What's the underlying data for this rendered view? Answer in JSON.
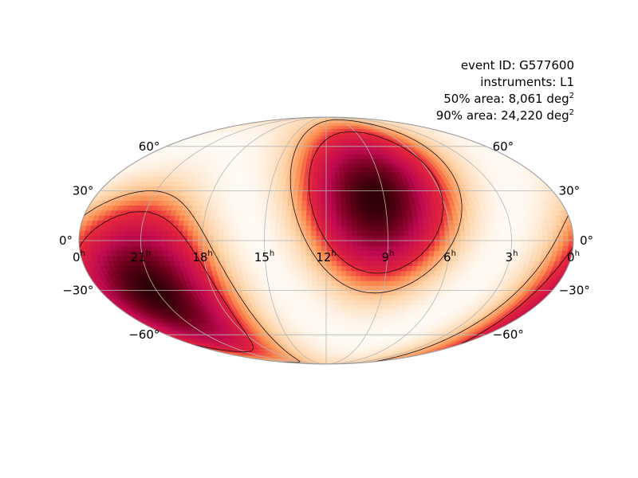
{
  "figure": {
    "event_id_label": "event ID: G577600",
    "instruments_label": "instruments: L1",
    "area50_text": "50% area: 8,061 deg",
    "area90_text": "90% area: 24,220 deg",
    "area_unit_sup": "2"
  },
  "chart_data": {
    "type": "heatmap",
    "projection": "mollweide",
    "coordinate_system": "equatorial",
    "ra_direction": "increases to the left",
    "colormap": "cylon (white-orange-red-black)",
    "grid": true,
    "ra_tick_labels": [
      {
        "ra_hours": 24,
        "main": "0",
        "sup": "h"
      },
      {
        "ra_hours": 21,
        "main": "21",
        "sup": "h"
      },
      {
        "ra_hours": 18,
        "main": "18",
        "sup": "h"
      },
      {
        "ra_hours": 15,
        "main": "15",
        "sup": "h"
      },
      {
        "ra_hours": 12,
        "main": "12",
        "sup": "h"
      },
      {
        "ra_hours": 9,
        "main": "9",
        "sup": "h"
      },
      {
        "ra_hours": 6,
        "main": "6",
        "sup": "h"
      },
      {
        "ra_hours": 3,
        "main": "3",
        "sup": "h"
      },
      {
        "ra_hours": 0,
        "main": "0",
        "sup": "h"
      }
    ],
    "dec_tick_labels": [
      {
        "dec_deg": 60,
        "text": "60°"
      },
      {
        "dec_deg": 30,
        "text": "30°"
      },
      {
        "dec_deg": 0,
        "text": "0°"
      },
      {
        "dec_deg": -30,
        "text": "−30°"
      },
      {
        "dec_deg": -60,
        "text": "−60°"
      }
    ],
    "probability_peaks": [
      {
        "ra_hours": 9.5,
        "dec_deg": 25,
        "relative_density": 1.0
      },
      {
        "ra_hours": 21.2,
        "dec_deg": -30,
        "relative_density": 1.0
      }
    ],
    "contour_levels": [
      "50%",
      "90%"
    ],
    "area_50_deg2": 8061,
    "area_90_deg2": 24220
  }
}
